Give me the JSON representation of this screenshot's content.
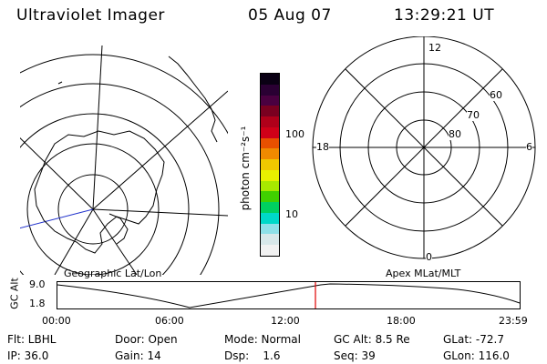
{
  "header": {
    "title": "Ultraviolet Imager",
    "date": "05 Aug 07",
    "time": "13:29:21 UT"
  },
  "colorbar": {
    "label": "photon cm⁻²s⁻¹",
    "tick_labels": [
      "100",
      "10"
    ],
    "colors": [
      "#0a0014",
      "#2a0033",
      "#4a0040",
      "#7a0020",
      "#b0001a",
      "#d00018",
      "#e85000",
      "#f08a00",
      "#f0c800",
      "#e8f000",
      "#a8e800",
      "#40d000",
      "#00d060",
      "#00d8c8",
      "#8ee0e8",
      "#d8e8ea",
      "#f2f2f2"
    ]
  },
  "polar_plot": {
    "mlt_labels": {
      "top": "12",
      "left": "18",
      "right": "6",
      "bottom": "0"
    },
    "lat_labels": [
      "60",
      "70",
      "80"
    ]
  },
  "map_labels": {
    "left": "Geographic Lat/Lon",
    "right": "Apex MLat/MLT"
  },
  "timeline": {
    "ylabel": "GC Alt",
    "y_ticks": [
      "9.0",
      "1.8"
    ],
    "x_ticks": [
      "00:00",
      "06:00",
      "12:00",
      "18:00",
      "23:59"
    ],
    "current_marker_color": "#e00000"
  },
  "info": {
    "flt": "Flt: LBHL",
    "ip": "IP: 36.0",
    "door": "Door: Open",
    "gain": "Gain: 14",
    "mode": "Mode: Normal",
    "dsp": "Dsp:    1.6",
    "gc_alt": "GC Alt: 8.5 Re",
    "seq": "Seq: 39",
    "glat": "GLat: -72.7",
    "glon": "GLon: 116.0"
  }
}
